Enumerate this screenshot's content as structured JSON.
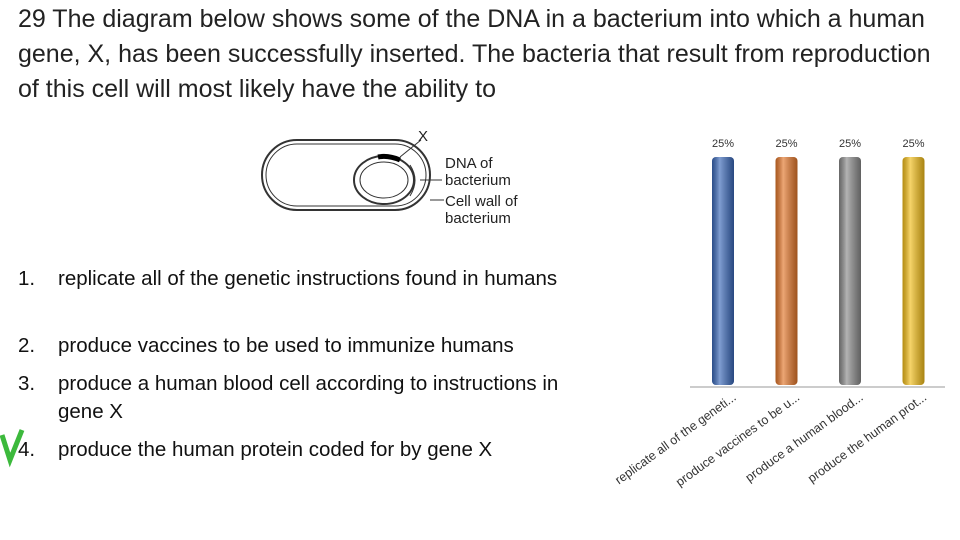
{
  "question": " 29 The diagram below shows some of the DNA in a bacterium into which a human gene, X, has been successfully inserted. The bacteria that result from reproduction of this cell will most likely have the ability to",
  "diagram": {
    "gene_label": "X",
    "dna_label": [
      "DNA of",
      "bacterium"
    ],
    "wall_label": [
      "Cell wall of",
      "bacterium"
    ]
  },
  "options": [
    {
      "number": "1.",
      "text": "replicate all of the genetic instructions found in humans"
    },
    {
      "number": "2.",
      "text": "produce vaccines to be used to immunize humans"
    },
    {
      "number": "3.",
      "text": "produce a human blood cell according to instructions in gene X"
    },
    {
      "number": "4.",
      "text": "produce the human protein coded for by gene X"
    }
  ],
  "chart_data": {
    "type": "bar",
    "categories": [
      "replicate all of the geneti...",
      "produce vaccines to be u...",
      "produce a human blood...",
      "produce the human prot..."
    ],
    "values": [
      25,
      25,
      25,
      25
    ],
    "value_labels": [
      "25%",
      "25%",
      "25%",
      "25%"
    ],
    "colors": [
      "#3a68b8",
      "#e2762a",
      "#8a8a8a",
      "#f2bd1a"
    ]
  }
}
